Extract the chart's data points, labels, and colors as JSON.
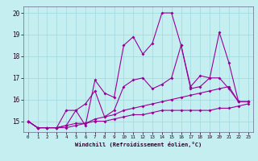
{
  "title": "",
  "xlabel": "Windchill (Refroidissement éolien,°C)",
  "bg_color": "#c5eef0",
  "line_color": "#990099",
  "xlim": [
    -0.5,
    23.5
  ],
  "ylim": [
    14.5,
    20.3
  ],
  "xticks": [
    0,
    1,
    2,
    3,
    4,
    5,
    6,
    7,
    8,
    9,
    10,
    11,
    12,
    13,
    14,
    15,
    16,
    17,
    18,
    19,
    20,
    21,
    22,
    23
  ],
  "yticks": [
    15,
    16,
    17,
    18,
    19,
    20
  ],
  "grid_color": "#a0d8dc",
  "series": [
    {
      "x": [
        0,
        1,
        2,
        3,
        4,
        5,
        6,
        7,
        8,
        9,
        10,
        11,
        12,
        13,
        14,
        15,
        16,
        17,
        18,
        19,
        20,
        21,
        22,
        23
      ],
      "y": [
        15.0,
        14.7,
        14.7,
        14.7,
        14.8,
        15.5,
        14.8,
        16.9,
        16.3,
        16.1,
        18.5,
        18.9,
        18.1,
        18.6,
        20.0,
        20.0,
        18.5,
        16.5,
        16.6,
        17.0,
        19.1,
        17.7,
        15.9,
        15.9
      ]
    },
    {
      "x": [
        0,
        1,
        2,
        3,
        4,
        5,
        6,
        7,
        8,
        9,
        10,
        11,
        12,
        13,
        14,
        15,
        16,
        17,
        18,
        19,
        20,
        21,
        22,
        23
      ],
      "y": [
        15.0,
        14.7,
        14.7,
        14.7,
        15.5,
        15.5,
        15.8,
        16.4,
        15.2,
        15.5,
        16.6,
        16.9,
        17.0,
        16.5,
        16.7,
        17.0,
        18.5,
        16.6,
        17.1,
        17.0,
        17.0,
        16.5,
        15.9,
        15.9
      ]
    },
    {
      "x": [
        0,
        1,
        2,
        3,
        4,
        5,
        6,
        7,
        8,
        9,
        10,
        11,
        12,
        13,
        14,
        15,
        16,
        17,
        18,
        19,
        20,
        21,
        22,
        23
      ],
      "y": [
        15.0,
        14.7,
        14.7,
        14.7,
        14.8,
        14.9,
        14.9,
        15.1,
        15.2,
        15.3,
        15.5,
        15.6,
        15.7,
        15.8,
        15.9,
        16.0,
        16.1,
        16.2,
        16.3,
        16.4,
        16.5,
        16.6,
        15.9,
        15.9
      ]
    },
    {
      "x": [
        0,
        1,
        2,
        3,
        4,
        5,
        6,
        7,
        8,
        9,
        10,
        11,
        12,
        13,
        14,
        15,
        16,
        17,
        18,
        19,
        20,
        21,
        22,
        23
      ],
      "y": [
        15.0,
        14.7,
        14.7,
        14.7,
        14.7,
        14.8,
        14.9,
        15.0,
        15.0,
        15.1,
        15.2,
        15.3,
        15.3,
        15.4,
        15.5,
        15.5,
        15.5,
        15.5,
        15.5,
        15.5,
        15.6,
        15.6,
        15.7,
        15.8
      ]
    }
  ]
}
